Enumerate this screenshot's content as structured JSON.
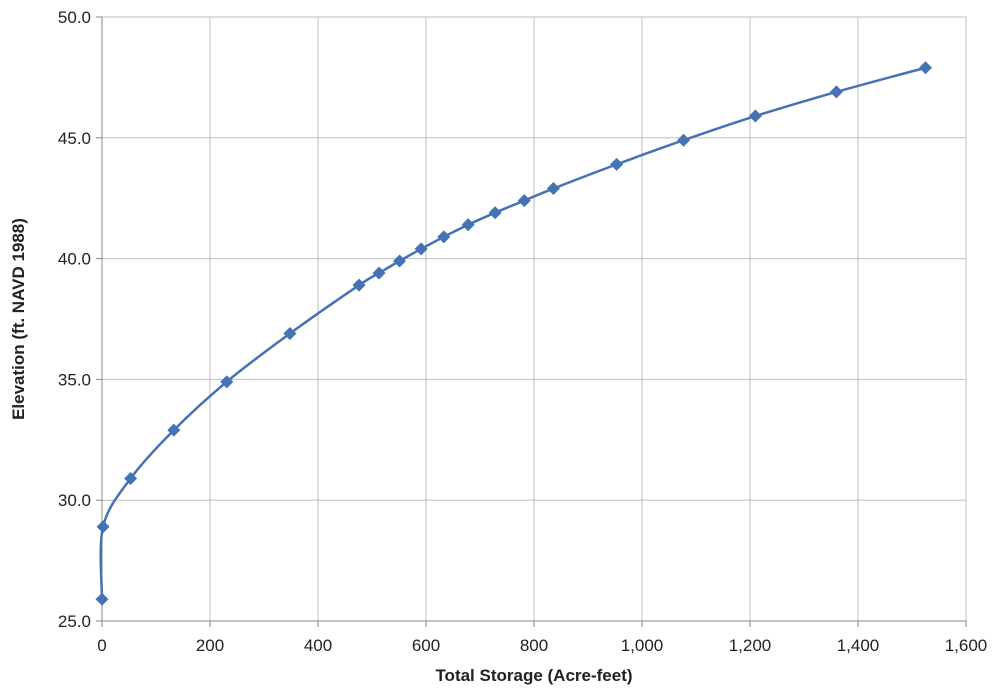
{
  "chart_data": {
    "type": "line",
    "title": "",
    "xlabel": "Total Storage (Acre-feet)",
    "ylabel": "Elevation (ft. NAVD 1988)",
    "xlim": [
      0,
      1600
    ],
    "ylim": [
      25.0,
      50.0
    ],
    "x_ticks": [
      0,
      200,
      400,
      600,
      800,
      1000,
      1200,
      1400,
      1600
    ],
    "x_tick_labels": [
      "0",
      "200",
      "400",
      "600",
      "800",
      "1,000",
      "1,200",
      "1,400",
      "1,600"
    ],
    "y_ticks": [
      25.0,
      30.0,
      35.0,
      40.0,
      45.0,
      50.0
    ],
    "y_tick_labels": [
      "25.0",
      "30.0",
      "35.0",
      "40.0",
      "45.0",
      "50.0"
    ],
    "grid": true,
    "legend": "none",
    "series": [
      {
        "color": "#4472b4",
        "marker": "diamond",
        "smooth": true,
        "points": [
          {
            "x": 0,
            "y": 25.9
          },
          {
            "x": 2,
            "y": 28.9
          },
          {
            "x": 53,
            "y": 30.9
          },
          {
            "x": 133,
            "y": 32.9
          },
          {
            "x": 231,
            "y": 34.9
          },
          {
            "x": 348,
            "y": 36.9
          },
          {
            "x": 476,
            "y": 38.9
          },
          {
            "x": 513,
            "y": 39.4
          },
          {
            "x": 551,
            "y": 39.9
          },
          {
            "x": 591,
            "y": 40.4
          },
          {
            "x": 633,
            "y": 40.9
          },
          {
            "x": 678,
            "y": 41.4
          },
          {
            "x": 728,
            "y": 41.9
          },
          {
            "x": 782,
            "y": 42.4
          },
          {
            "x": 836,
            "y": 42.9
          },
          {
            "x": 953,
            "y": 43.9
          },
          {
            "x": 1077,
            "y": 44.9
          },
          {
            "x": 1210,
            "y": 45.9
          },
          {
            "x": 1360,
            "y": 46.9
          },
          {
            "x": 1525,
            "y": 47.9
          }
        ]
      }
    ]
  }
}
